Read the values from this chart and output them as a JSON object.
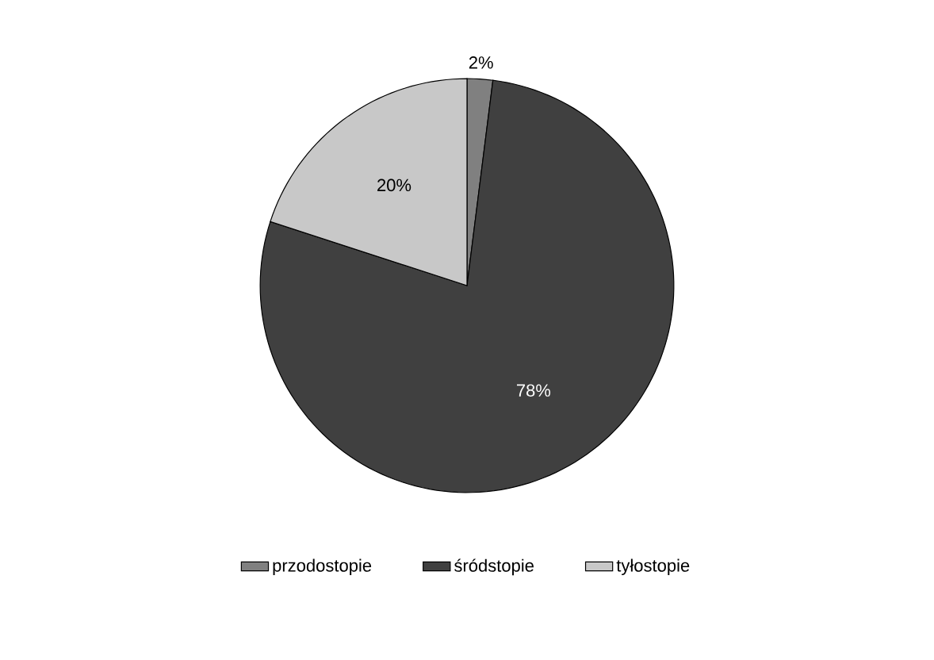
{
  "chart_data": {
    "type": "pie",
    "categories": [
      "przodostopie",
      "śródstopie",
      "tyłostopie"
    ],
    "values": [
      2,
      78,
      20
    ],
    "colors": [
      "#808080",
      "#404040",
      "#c8c8c8"
    ],
    "value_labels": [
      "2%",
      "78%",
      "20%"
    ],
    "legend": "bottom"
  }
}
